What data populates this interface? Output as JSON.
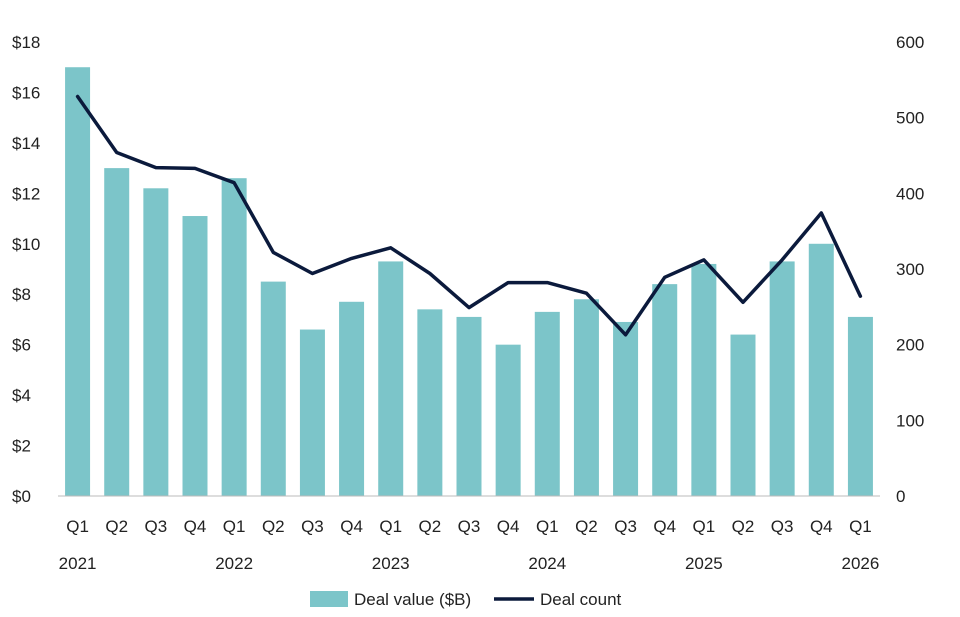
{
  "chart_data": {
    "type": "bar",
    "title": "",
    "quarters": [
      "Q1",
      "Q2",
      "Q3",
      "Q4",
      "Q1",
      "Q2",
      "Q3",
      "Q4",
      "Q1",
      "Q2",
      "Q3",
      "Q4",
      "Q1",
      "Q2",
      "Q3",
      "Q4",
      "Q1",
      "Q2",
      "Q3",
      "Q4",
      "Q1"
    ],
    "year_labels": [
      {
        "label": "2021",
        "index": 0
      },
      {
        "label": "2022",
        "index": 4
      },
      {
        "label": "2023",
        "index": 8
      },
      {
        "label": "2024",
        "index": 12
      },
      {
        "label": "2025",
        "index": 16
      },
      {
        "label": "2026",
        "index": 20
      }
    ],
    "y_left": {
      "ylim": [
        0,
        18
      ],
      "ticks": [
        "$0",
        "$2",
        "$4",
        "$6",
        "$8",
        "$10",
        "$12",
        "$14",
        "$16",
        "$18"
      ]
    },
    "y_right": {
      "ylim": [
        0,
        600
      ],
      "ticks": [
        "0",
        "100",
        "200",
        "300",
        "400",
        "500",
        "600"
      ]
    },
    "series": [
      {
        "name": "Deal value ($B)",
        "type": "bar",
        "axis": "left",
        "color": "#7cc5c9",
        "values": [
          17.0,
          13.0,
          12.2,
          11.1,
          12.6,
          8.5,
          6.6,
          7.7,
          9.3,
          7.4,
          7.1,
          6.0,
          7.3,
          7.8,
          6.9,
          8.4,
          9.2,
          6.4,
          9.3,
          10.0,
          7.1
        ]
      },
      {
        "name": "Deal count",
        "type": "line",
        "axis": "right",
        "color": "#0b1a3c",
        "values": [
          528,
          454,
          434,
          433,
          414,
          322,
          294,
          314,
          328,
          294,
          249,
          282,
          282,
          268,
          213,
          289,
          312,
          256,
          312,
          374,
          264
        ]
      }
    ],
    "grid": false,
    "legend_position": "bottom-center"
  }
}
